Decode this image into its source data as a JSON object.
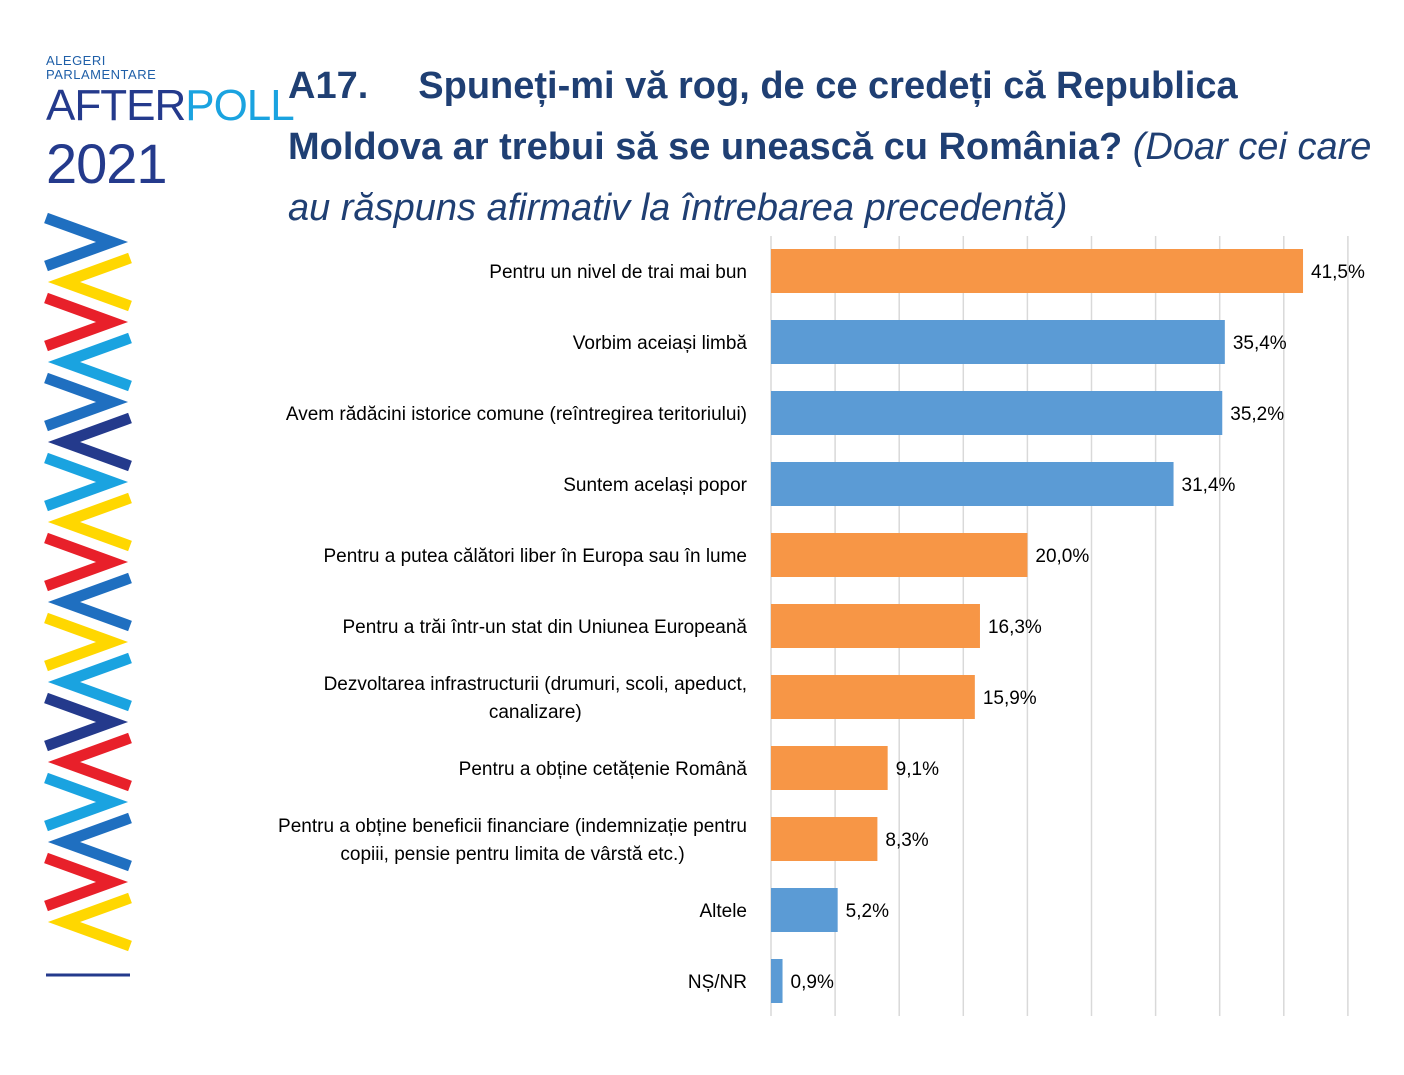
{
  "logo": {
    "line1": "ALEGERI",
    "line2": "PARLAMENTARE",
    "word_a": "AFTER",
    "word_b": "POLL",
    "year": "2021"
  },
  "header": {
    "number": "A17.",
    "question": "Spuneți-mi vă rog, de ce credeți că Republica Moldova ar trebui să se unească cu România?",
    "note": "(Doar cei care au răspuns afirmativ la întrebarea precedentă)"
  },
  "colors": {
    "orange": "#F79646",
    "blue": "#5B9BD5",
    "title": "#1F3F73",
    "grid": "#D9D9D9"
  },
  "chart_data": {
    "type": "bar",
    "orientation": "horizontal",
    "title": "A17. Spuneți-mi vă rog, de ce credeți că Republica Moldova ar trebui să se unească cu România? (Doar cei care au răspuns afirmativ la întrebarea precedentă)",
    "xlim": [
      0,
      45
    ],
    "grid": true,
    "categories": [
      [
        "Pentru un nivel de trai mai bun"
      ],
      [
        "Vorbim aceiași limbă"
      ],
      [
        "Avem rădăcini istorice comune (reîntregirea teritoriului)"
      ],
      [
        "Suntem același popor"
      ],
      [
        "Pentru a putea călători liber în Europa sau în lume"
      ],
      [
        "Pentru a trăi într-un stat din Uniunea Europeană"
      ],
      [
        "Dezvoltarea infrastructurii (drumuri, scoli, apeduct,",
        "canalizare)"
      ],
      [
        "Pentru a obține cetățenie Română"
      ],
      [
        "Pentru a obține beneficii financiare (indemnizație pentru",
        "copiii, pensie pentru limita de vârstă etc.)"
      ],
      [
        "Altele"
      ],
      [
        "NȘ/NR"
      ]
    ],
    "values": [
      41.5,
      35.4,
      35.2,
      31.4,
      20.0,
      16.3,
      15.9,
      9.1,
      8.3,
      5.2,
      0.9
    ],
    "value_labels": [
      "41,5%",
      "35,4%",
      "35,2%",
      "31,4%",
      "20,0%",
      "16,3%",
      "15,9%",
      "9,1%",
      "8,3%",
      "5,2%",
      "0,9%"
    ],
    "bar_colors": [
      "orange",
      "blue",
      "blue",
      "blue",
      "orange",
      "orange",
      "orange",
      "orange",
      "orange",
      "blue",
      "blue"
    ]
  }
}
